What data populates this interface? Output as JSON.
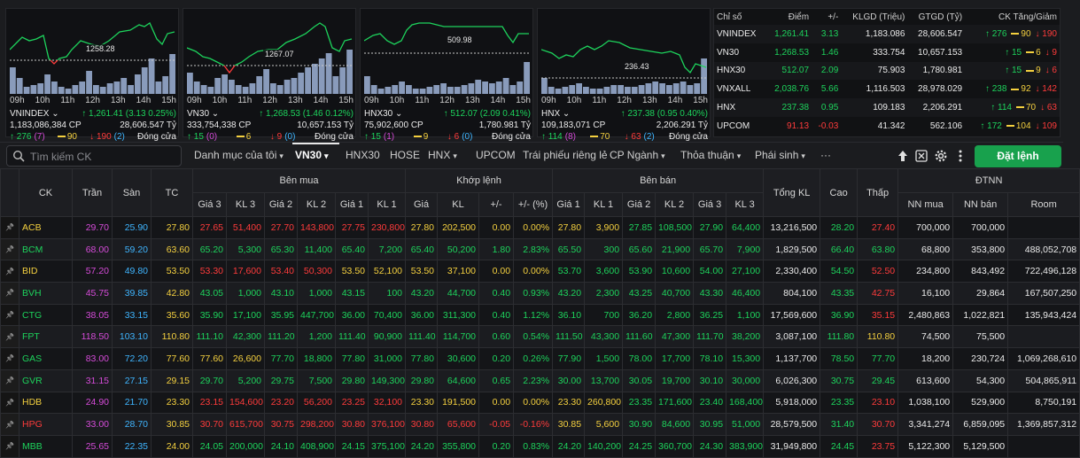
{
  "cards": [
    {
      "name": "VNINDEX",
      "level": "1258.28",
      "time_labels": [
        "09h",
        "10h",
        "11h",
        "12h",
        "13h",
        "14h",
        "15h"
      ],
      "volume": "1,183,086,384 CP",
      "change": "↑ 1,261.41 (3.13 0.25%)",
      "value": "28,606.547 Tỷ",
      "up": "↑ 276",
      "up_sub": "(7)",
      "unch": "90",
      "down": "↓ 190",
      "down_sub": "(2)",
      "status": "Đóng cửa"
    },
    {
      "name": "VN30",
      "level": "1267.07",
      "time_labels": [
        "09h",
        "10h",
        "11h",
        "12h",
        "13h",
        "14h",
        "15h"
      ],
      "volume": "333,754,338 CP",
      "change": "↑ 1,268.53 (1.46 0.12%)",
      "value": "10,657.153 Tỷ",
      "up": "↑ 15",
      "up_sub": "(0)",
      "unch": "6",
      "down": "↓ 9",
      "down_sub": "(0)",
      "status": "Đóng cửa"
    },
    {
      "name": "HNX30",
      "level": "509.98",
      "time_labels": [
        "09h",
        "10h",
        "11h",
        "12h",
        "13h",
        "14h",
        "15h"
      ],
      "volume": "75,902,600 CP",
      "change": "↑ 512.07 (2.09 0.41%)",
      "value": "1,780.981 Tỷ",
      "up": "↑ 15",
      "up_sub": "(1)",
      "unch": "9",
      "down": "↓ 6",
      "down_sub": "(0)",
      "status": "Đóng cửa"
    },
    {
      "name": "HNX",
      "level": "236.43",
      "time_labels": [
        "09h",
        "10h",
        "11h",
        "12h",
        "13h",
        "14h",
        "15h"
      ],
      "volume": "109,183,071 CP",
      "change": "↑ 237.38 (0.95 0.40%)",
      "value": "2,206.291 Tỷ",
      "up": "↑ 114",
      "up_sub": "(8)",
      "unch": "70",
      "down": "↓ 63",
      "down_sub": "(2)",
      "status": "Đóng cửa"
    }
  ],
  "index_table": {
    "headers": [
      "Chỉ số",
      "Điểm",
      "+/-",
      "KLGD (Triệu)",
      "GTGD (Tỷ)",
      "CK Tăng/Giảm"
    ],
    "rows": [
      {
        "name": "VNINDEX",
        "point": "1,261.41",
        "chg": "3.13",
        "klgd": "1,183.086",
        "gtgd": "28,606.547",
        "up": "↑ 276",
        "unch": "90",
        "down": "↓ 190",
        "color": "up"
      },
      {
        "name": "VN30",
        "point": "1,268.53",
        "chg": "1.46",
        "klgd": "333.754",
        "gtgd": "10,657.153",
        "up": "↑ 15",
        "unch": "6",
        "down": "↓ 9",
        "color": "up"
      },
      {
        "name": "HNX30",
        "point": "512.07",
        "chg": "2.09",
        "klgd": "75.903",
        "gtgd": "1,780.981",
        "up": "↑ 15",
        "unch": "9",
        "down": "↓ 6",
        "color": "up"
      },
      {
        "name": "VNXALL",
        "point": "2,038.76",
        "chg": "5.66",
        "klgd": "1,116.503",
        "gtgd": "28,978.029",
        "up": "↑ 238",
        "unch": "92",
        "down": "↓ 142",
        "color": "up"
      },
      {
        "name": "HNX",
        "point": "237.38",
        "chg": "0.95",
        "klgd": "109.183",
        "gtgd": "2,206.291",
        "up": "↑ 114",
        "unch": "70",
        "down": "↓ 63",
        "color": "up"
      },
      {
        "name": "UPCOM",
        "point": "91.13",
        "chg": "-0.03",
        "klgd": "41.342",
        "gtgd": "562.106",
        "up": "↑ 172",
        "unch": "104",
        "down": "↓ 109",
        "color": "down"
      }
    ]
  },
  "toolbar": {
    "search_placeholder": "Tìm kiếm CK",
    "tabs": [
      {
        "label": "Danh mục của tôi",
        "caret": true
      },
      {
        "label": "VN30",
        "caret": true,
        "active": true
      },
      {
        "label": "HNX30"
      },
      {
        "label": "HOSE"
      },
      {
        "label": "HNX",
        "caret": true
      },
      {
        "label": "UPCOM"
      },
      {
        "label": "Trái phiếu riêng lẻ"
      },
      {
        "label": "CP Ngành",
        "caret": true
      },
      {
        "label": "Thỏa thuận",
        "caret": true
      },
      {
        "label": "Phái sinh",
        "caret": true
      },
      {
        "label": "···"
      }
    ],
    "order_button": "Đặt lệnh"
  },
  "board": {
    "group_headers": {
      "buy": "Bên mua",
      "match": "Khớp lệnh",
      "sell": "Bên bán",
      "foreign": "ĐTNN"
    },
    "headers": {
      "ck": "CK",
      "ceil": "Trần",
      "floor": "Sàn",
      "ref": "TC",
      "tkl": "Tổng KL",
      "high": "Cao",
      "low": "Thấp",
      "sub": [
        "Giá 3",
        "KL 3",
        "Giá 2",
        "KL 2",
        "Giá 1",
        "KL 1",
        "Giá",
        "KL",
        "+/-",
        "+/- (%)",
        "Giá 1",
        "KL 1",
        "Giá 2",
        "KL 2",
        "Giá 3",
        "KL 3"
      ],
      "foreign": [
        "NN mua",
        "NN bán",
        "Room"
      ]
    },
    "rows": [
      {
        "ck": "ACB",
        "c": "ref",
        "v": [
          "29.70",
          "25.90",
          "27.80",
          "27.65",
          "51,400",
          "27.70",
          "143,800",
          "27.75",
          "230,800",
          "27.80",
          "202,500",
          "0.00",
          "0.00%",
          "27.80",
          "3,900",
          "27.85",
          "108,500",
          "27.90",
          "64,400",
          "13,216,500",
          "28.20",
          "27.40",
          "700,000",
          "700,000",
          ""
        ],
        "k": [
          "ceil",
          "floor",
          "ref",
          "down",
          "down",
          "down",
          "down",
          "down",
          "down",
          "ref",
          "ref",
          "ref",
          "ref",
          "ref",
          "ref",
          "up",
          "up",
          "up",
          "up",
          "white",
          "up",
          "down",
          "white",
          "white",
          "white"
        ]
      },
      {
        "ck": "BCM",
        "c": "up",
        "v": [
          "68.00",
          "59.20",
          "63.60",
          "65.20",
          "5,300",
          "65.30",
          "11,400",
          "65.40",
          "7,200",
          "65.40",
          "50,200",
          "1.80",
          "2.83%",
          "65.50",
          "300",
          "65.60",
          "21,900",
          "65.70",
          "7,900",
          "1,829,500",
          "66.40",
          "63.80",
          "68,800",
          "353,800",
          "488,052,708"
        ],
        "k": [
          "ceil",
          "floor",
          "ref",
          "up",
          "up",
          "up",
          "up",
          "up",
          "up",
          "up",
          "up",
          "up",
          "up",
          "up",
          "up",
          "up",
          "up",
          "up",
          "up",
          "white",
          "up",
          "up",
          "white",
          "white",
          "white"
        ]
      },
      {
        "ck": "BID",
        "c": "ref",
        "v": [
          "57.20",
          "49.80",
          "53.50",
          "53.30",
          "17,600",
          "53.40",
          "50,300",
          "53.50",
          "52,100",
          "53.50",
          "37,100",
          "0.00",
          "0.00%",
          "53.70",
          "3,600",
          "53.90",
          "10,600",
          "54.00",
          "27,100",
          "2,330,400",
          "54.50",
          "52.50",
          "234,800",
          "843,492",
          "722,496,128"
        ],
        "k": [
          "ceil",
          "floor",
          "ref",
          "down",
          "down",
          "down",
          "down",
          "ref",
          "ref",
          "ref",
          "ref",
          "ref",
          "ref",
          "up",
          "up",
          "up",
          "up",
          "up",
          "up",
          "white",
          "up",
          "down",
          "white",
          "white",
          "white"
        ]
      },
      {
        "ck": "BVH",
        "c": "up",
        "v": [
          "45.75",
          "39.85",
          "42.80",
          "43.05",
          "1,000",
          "43.10",
          "1,000",
          "43.15",
          "100",
          "43.20",
          "44,700",
          "0.40",
          "0.93%",
          "43.20",
          "2,300",
          "43.25",
          "40,700",
          "43.30",
          "46,400",
          "804,100",
          "43.35",
          "42.75",
          "16,100",
          "29,864",
          "167,507,250"
        ],
        "k": [
          "ceil",
          "floor",
          "ref",
          "up",
          "up",
          "up",
          "up",
          "up",
          "up",
          "up",
          "up",
          "up",
          "up",
          "up",
          "up",
          "up",
          "up",
          "up",
          "up",
          "white",
          "up",
          "down",
          "white",
          "white",
          "white"
        ]
      },
      {
        "ck": "CTG",
        "c": "up",
        "v": [
          "38.05",
          "33.15",
          "35.60",
          "35.90",
          "17,100",
          "35.95",
          "447,700",
          "36.00",
          "70,400",
          "36.00",
          "311,300",
          "0.40",
          "1.12%",
          "36.10",
          "700",
          "36.20",
          "2,800",
          "36.25",
          "1,100",
          "17,569,600",
          "36.90",
          "35.15",
          "2,480,863",
          "1,022,821",
          "135,943,424"
        ],
        "k": [
          "ceil",
          "floor",
          "ref",
          "up",
          "up",
          "up",
          "up",
          "up",
          "up",
          "up",
          "up",
          "up",
          "up",
          "up",
          "up",
          "up",
          "up",
          "up",
          "up",
          "white",
          "up",
          "down",
          "white",
          "white",
          "white"
        ]
      },
      {
        "ck": "FPT",
        "c": "up",
        "v": [
          "118.50",
          "103.10",
          "110.80",
          "111.10",
          "42,300",
          "111.20",
          "1,200",
          "111.40",
          "90,900",
          "111.40",
          "114,700",
          "0.60",
          "0.54%",
          "111.50",
          "43,300",
          "111.60",
          "47,300",
          "111.70",
          "38,200",
          "3,087,100",
          "111.80",
          "110.80",
          "74,500",
          "75,500",
          ""
        ],
        "k": [
          "ceil",
          "floor",
          "ref",
          "up",
          "up",
          "up",
          "up",
          "up",
          "up",
          "up",
          "up",
          "up",
          "up",
          "up",
          "up",
          "up",
          "up",
          "up",
          "up",
          "white",
          "up",
          "ref",
          "white",
          "white",
          "white"
        ]
      },
      {
        "ck": "GAS",
        "c": "up",
        "v": [
          "83.00",
          "72.20",
          "77.60",
          "77.60",
          "26,600",
          "77.70",
          "18,800",
          "77.80",
          "31,000",
          "77.80",
          "30,600",
          "0.20",
          "0.26%",
          "77.90",
          "1,500",
          "78.00",
          "17,700",
          "78.10",
          "15,300",
          "1,137,700",
          "78.50",
          "77.70",
          "18,200",
          "230,724",
          "1,069,268,610"
        ],
        "k": [
          "ceil",
          "floor",
          "ref",
          "ref",
          "ref",
          "up",
          "up",
          "up",
          "up",
          "up",
          "up",
          "up",
          "up",
          "up",
          "up",
          "up",
          "up",
          "up",
          "up",
          "white",
          "up",
          "up",
          "white",
          "white",
          "white"
        ]
      },
      {
        "ck": "GVR",
        "c": "up",
        "v": [
          "31.15",
          "27.15",
          "29.15",
          "29.70",
          "5,200",
          "29.75",
          "7,500",
          "29.80",
          "149,300",
          "29.80",
          "64,600",
          "0.65",
          "2.23%",
          "30.00",
          "13,700",
          "30.05",
          "19,700",
          "30.10",
          "30,000",
          "6,026,300",
          "30.75",
          "29.45",
          "613,600",
          "54,300",
          "504,865,911"
        ],
        "k": [
          "ceil",
          "floor",
          "ref",
          "up",
          "up",
          "up",
          "up",
          "up",
          "up",
          "up",
          "up",
          "up",
          "up",
          "up",
          "up",
          "up",
          "up",
          "up",
          "up",
          "white",
          "up",
          "up",
          "white",
          "white",
          "white"
        ]
      },
      {
        "ck": "HDB",
        "c": "ref",
        "v": [
          "24.90",
          "21.70",
          "23.30",
          "23.15",
          "154,600",
          "23.20",
          "56,200",
          "23.25",
          "32,100",
          "23.30",
          "191,500",
          "0.00",
          "0.00%",
          "23.30",
          "260,800",
          "23.35",
          "171,600",
          "23.40",
          "168,400",
          "5,918,000",
          "23.35",
          "23.10",
          "1,038,100",
          "529,900",
          "8,750,191"
        ],
        "k": [
          "ceil",
          "floor",
          "ref",
          "down",
          "down",
          "down",
          "down",
          "down",
          "down",
          "ref",
          "ref",
          "ref",
          "ref",
          "ref",
          "ref",
          "up",
          "up",
          "up",
          "up",
          "white",
          "up",
          "down",
          "white",
          "white",
          "white"
        ]
      },
      {
        "ck": "HPG",
        "c": "down",
        "v": [
          "33.00",
          "28.70",
          "30.85",
          "30.70",
          "615,700",
          "30.75",
          "298,200",
          "30.80",
          "376,100",
          "30.80",
          "65,600",
          "-0.05",
          "-0.16%",
          "30.85",
          "5,600",
          "30.90",
          "84,600",
          "30.95",
          "51,000",
          "28,579,500",
          "31.40",
          "30.70",
          "3,341,274",
          "6,859,095",
          "1,369,857,312"
        ],
        "k": [
          "ceil",
          "floor",
          "ref",
          "down",
          "down",
          "down",
          "down",
          "down",
          "down",
          "down",
          "down",
          "down",
          "down",
          "ref",
          "ref",
          "up",
          "up",
          "up",
          "up",
          "white",
          "up",
          "down",
          "white",
          "white",
          "white"
        ]
      },
      {
        "ck": "MBB",
        "c": "up",
        "v": [
          "25.65",
          "22.35",
          "24.00",
          "24.05",
          "200,000",
          "24.10",
          "408,900",
          "24.15",
          "375,100",
          "24.20",
          "355,800",
          "0.20",
          "0.83%",
          "24.20",
          "140,200",
          "24.25",
          "360,700",
          "24.30",
          "383,900",
          "31,949,800",
          "24.45",
          "23.75",
          "5,122,300",
          "5,129,500",
          ""
        ],
        "k": [
          "ceil",
          "floor",
          "ref",
          "up",
          "up",
          "up",
          "up",
          "up",
          "up",
          "up",
          "up",
          "up",
          "up",
          "up",
          "up",
          "up",
          "up",
          "up",
          "up",
          "white",
          "up",
          "down",
          "white",
          "white",
          "white"
        ]
      }
    ]
  },
  "colors": {
    "up": "#1dd35c",
    "down": "#ff3b3b",
    "ref": "#f4d03f",
    "ceil": "#d54bd8",
    "floor": "#3fb5ff",
    "accent": "#18a14d"
  }
}
